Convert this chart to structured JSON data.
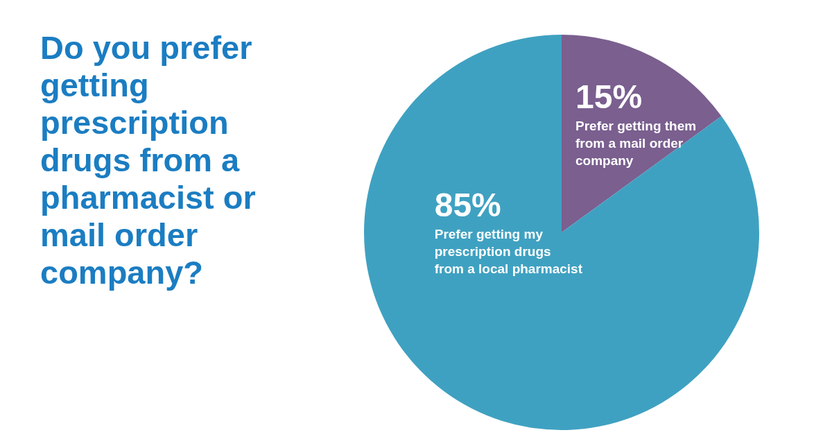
{
  "chart_data": {
    "type": "pie",
    "title": "Do you prefer getting prescription drugs from a pharmacist or mail order company?",
    "categories": [
      "Prefer getting them from a mail order company",
      "Prefer getting my prescription drugs from a local pharmacist"
    ],
    "values": [
      15,
      85
    ],
    "colors": [
      "#7a5f8f",
      "#3fa1c1"
    ],
    "value_labels": [
      "15%",
      "85%"
    ],
    "legend": false
  }
}
